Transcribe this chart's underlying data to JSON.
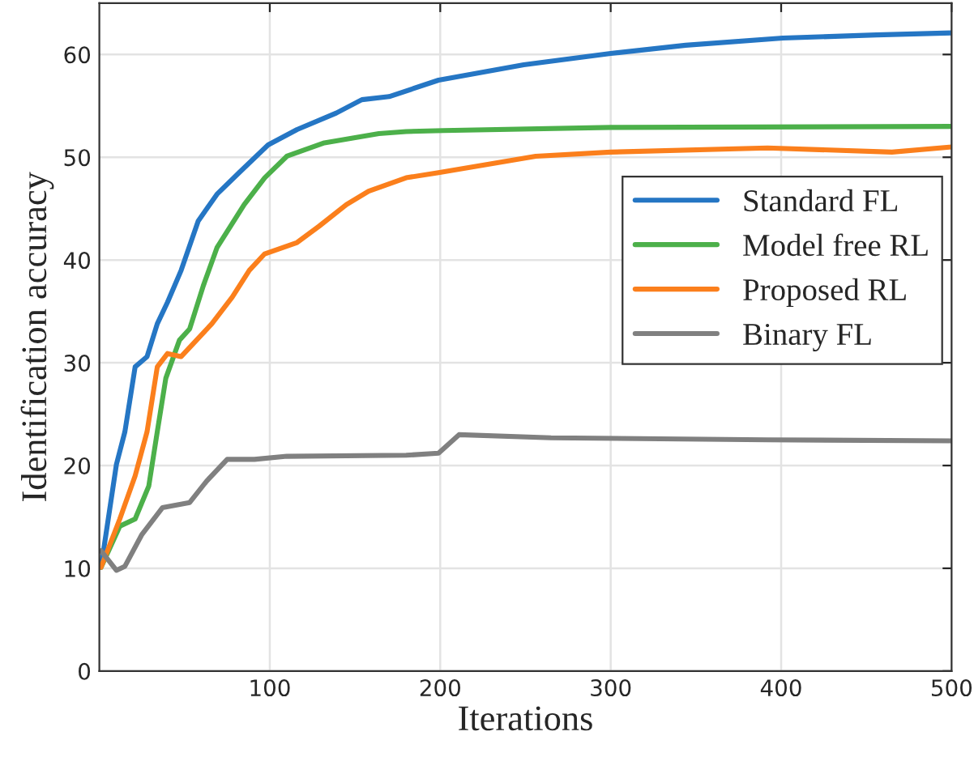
{
  "chart_data": {
    "type": "line",
    "xlabel": "Iterations",
    "ylabel": "Identification accuracy",
    "xlim": [
      0,
      500
    ],
    "xticks": [
      100,
      200,
      300,
      400,
      500
    ],
    "ylim": [
      0,
      65
    ],
    "yticks": [
      0,
      10,
      20,
      30,
      40,
      50,
      60
    ],
    "grid": true,
    "legend": "right",
    "line_style": "solid",
    "marker": "none",
    "series": [
      {
        "name": "Standard FL",
        "color": "#2576c4",
        "x": [
          1,
          10,
          15,
          21,
          28,
          34,
          40,
          48,
          58,
          69,
          82,
          99,
          116,
          139,
          154,
          170,
          199,
          249,
          300,
          344,
          401,
          456,
          500
        ],
        "values": [
          10.1,
          20.1,
          23.3,
          29.6,
          30.6,
          33.8,
          35.9,
          39,
          43.8,
          46.4,
          48.5,
          51.2,
          52.7,
          54.3,
          55.6,
          55.9,
          57.5,
          59,
          60.1,
          60.9,
          61.6,
          61.9,
          62.1
        ]
      },
      {
        "name": "Model free RL",
        "color": "#4cb04a",
        "x": [
          1,
          12,
          21,
          29,
          34,
          39,
          47,
          53,
          61,
          69,
          85,
          97,
          110,
          132,
          164,
          180,
          202,
          300,
          500
        ],
        "values": [
          10.1,
          14.1,
          14.8,
          18,
          23.3,
          28.5,
          32.2,
          33.3,
          37.5,
          41.2,
          45.4,
          48,
          50.1,
          51.4,
          52.3,
          52.5,
          52.6,
          52.9,
          53
        ]
      },
      {
        "name": "Proposed RL",
        "color": "#fb7f1c",
        "x": [
          1,
          12,
          21,
          28,
          34,
          40,
          48,
          66,
          78,
          88,
          97,
          116,
          129,
          145,
          158,
          180,
          199,
          256,
          300,
          392,
          465,
          500
        ],
        "values": [
          10.1,
          14.8,
          19,
          23.3,
          29.6,
          30.9,
          30.6,
          33.8,
          36.4,
          39,
          40.6,
          41.7,
          43.3,
          45.4,
          46.7,
          48,
          48.5,
          50.1,
          50.5,
          50.9,
          50.5,
          51
        ]
      },
      {
        "name": "Binary FL",
        "color": "#808080",
        "x": [
          1,
          10,
          15,
          25,
          37,
          53,
          63,
          75,
          91,
          110,
          180,
          199,
          211,
          265,
          392,
          500
        ],
        "values": [
          11.7,
          9.8,
          10.2,
          13.3,
          15.9,
          16.4,
          18.5,
          20.6,
          20.6,
          20.9,
          21,
          21.2,
          23,
          22.7,
          22.5,
          22.4
        ]
      }
    ]
  }
}
